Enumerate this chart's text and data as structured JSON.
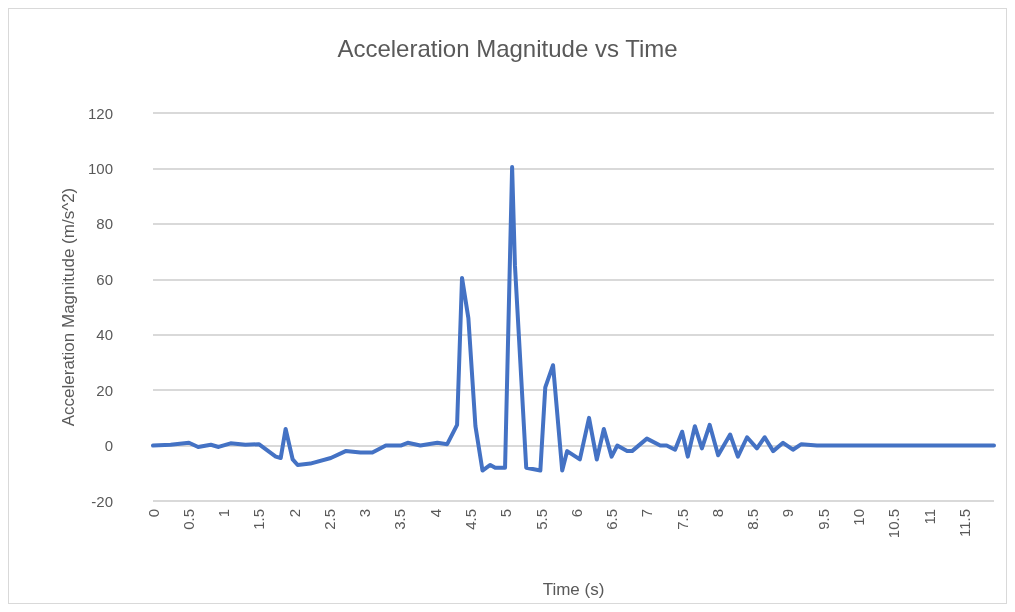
{
  "chart_data": {
    "type": "line",
    "title": "Acceleration Magnitude vs Time",
    "xlabel": "Time (s)",
    "ylabel": "Acceleration Magnitude (m/s^2)",
    "x": [
      0,
      0.25,
      0.51,
      0.64,
      0.82,
      0.93,
      1.1,
      1.31,
      1.5,
      1.74,
      1.81,
      1.88,
      1.98,
      2.05,
      2.23,
      2.52,
      2.73,
      2.94,
      3.11,
      3.3,
      3.51,
      3.61,
      3.79,
      4.03,
      4.17,
      4.31,
      4.38,
      4.47,
      4.57,
      4.67,
      4.78,
      4.85,
      4.99,
      5.09,
      5.13,
      5.29,
      5.49,
      5.56,
      5.67,
      5.8,
      5.87,
      6.05,
      6.18,
      6.29,
      6.39,
      6.5,
      6.58,
      6.72,
      6.79,
      7.0,
      7.19,
      7.28,
      7.4,
      7.5,
      7.58,
      7.68,
      7.78,
      7.89,
      8.01,
      8.18,
      8.29,
      8.42,
      8.56,
      8.67,
      8.79,
      8.93,
      9.07,
      9.19,
      9.41,
      9.69,
      9.94,
      11.92
    ],
    "series": [
      {
        "color": "#4472c4",
        "values": [
          0,
          0.3,
          1,
          -0.5,
          0.3,
          -0.5,
          0.8,
          0.3,
          0.5,
          -4,
          -4.5,
          6,
          -5,
          -7,
          -6.5,
          -4.5,
          -2,
          -2.5,
          -2.5,
          0,
          0,
          1,
          0,
          1,
          0.5,
          7.5,
          60.5,
          46,
          7,
          -9,
          -7,
          -8,
          -8,
          100.5,
          65,
          -8,
          -9,
          21,
          29,
          -9,
          -2,
          -5,
          10,
          -5,
          6,
          -4,
          0,
          -2,
          -2,
          2.5,
          0,
          0,
          -1.5,
          5,
          -4,
          7,
          -1,
          7.5,
          -3.5,
          4,
          -4,
          3,
          -1,
          3,
          -2,
          1,
          -1.5,
          0.5,
          0,
          0,
          0,
          0
        ]
      }
    ],
    "xlim": [
      0,
      11.92
    ],
    "xticks": [
      0,
      0.5,
      1,
      1.5,
      2,
      2.5,
      3,
      3.5,
      4,
      4.5,
      5,
      5.5,
      6,
      6.5,
      7,
      7.5,
      8,
      8.5,
      9,
      9.5,
      10,
      10.5,
      11,
      11.5
    ],
    "ylim": [
      -20,
      120
    ],
    "yticks": [
      -20,
      0,
      20,
      40,
      60,
      80,
      100,
      120
    ],
    "grid": "y",
    "marker": "none",
    "line_style": "solid"
  }
}
